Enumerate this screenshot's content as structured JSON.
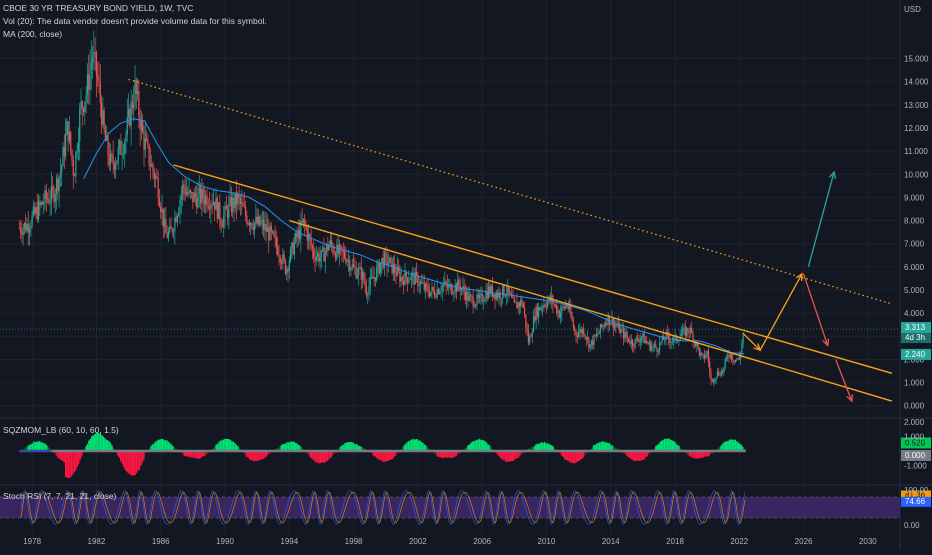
{
  "colors": {
    "background": "#131722",
    "grid": "#1e222d",
    "candle_up": "#26a69a",
    "candle_down": "#ef5350",
    "ma_line": "#2196f3",
    "channel": "#f7a21b",
    "dotted": "#f7a21b",
    "arrow_up": "#26a69a",
    "arrow_down": "#ef5350",
    "arrow_orange": "#f7a21b",
    "rsi_band": "#4a2c7a",
    "rsi_line": "#7e57c2"
  },
  "header": {
    "symbol_line": "CBOE 30 YR TREASURY BOND YIELD, 1W, TVC",
    "volume_line": "Vol (20): The data vendor doesn't provide volume data for this symbol.",
    "ma_line": "MA (200, close)"
  },
  "price_axis": {
    "unit": "USD",
    "ticks": [
      "15.000",
      "14.000",
      "13.000",
      "12.000",
      "11.000",
      "10.000",
      "9.000",
      "8.000",
      "7.000",
      "6.000",
      "5.000",
      "4.000",
      "3.000",
      "2.000",
      "1.000",
      "0.000"
    ],
    "price_badge": "3.313",
    "countdown_badge": "4d 3h",
    "ma_badge": "2.240"
  },
  "time_axis": {
    "ticks": [
      "1978",
      "1982",
      "1986",
      "1990",
      "1994",
      "1998",
      "2002",
      "2006",
      "2010",
      "2014",
      "2018",
      "2022",
      "2026",
      "2030"
    ]
  },
  "sqzmom": {
    "label": "SQZMOM_LB (60, 10, 60, 1.5)",
    "ticks": [
      "2.000",
      "1.000",
      "-1.000"
    ],
    "badge_value": "0.520",
    "badge_zero": "0.000"
  },
  "stoch": {
    "label": "Stoch RSI (7, 7, 21, 21, close)",
    "ticks": [
      "100.00",
      "0.00"
    ],
    "badge_k": "81.36",
    "badge_d": "74.66"
  },
  "chart_data": {
    "type": "line",
    "title": "CBOE 30 YR TREASURY BOND YIELD, 1W, TVC",
    "xlabel": "",
    "ylabel": "",
    "unit": "USD",
    "xlim": [
      1976,
      2032
    ],
    "ylim": [
      -0.4,
      15.8
    ],
    "grid": true,
    "series": [
      {
        "name": "CBOE 30 YR TREASURY BOND YIELD",
        "x": [
          1977.2,
          1977.7,
          1978.3,
          1978.8,
          1979.3,
          1979.8,
          1980.2,
          1980.6,
          1981.0,
          1981.4,
          1981.75,
          1982.1,
          1982.5,
          1982.9,
          1983.3,
          1983.8,
          1984.4,
          1984.9,
          1985.4,
          1985.8,
          1986.3,
          1986.6,
          1987.0,
          1987.4,
          1987.8,
          1988.3,
          1988.8,
          1989.3,
          1989.8,
          1990.3,
          1990.8,
          1991.3,
          1991.8,
          1992.3,
          1992.8,
          1993.3,
          1993.8,
          1994.3,
          1994.9,
          1995.5,
          1996.0,
          1996.5,
          1997.0,
          1997.5,
          1998.0,
          1998.5,
          1998.8,
          1999.3,
          1999.8,
          2000.2,
          2000.6,
          2001.0,
          2001.5,
          2002.0,
          2002.5,
          2003.0,
          2003.5,
          2004.0,
          2004.6,
          2005.2,
          2005.8,
          2006.4,
          2007.0,
          2007.5,
          2008.0,
          2008.5,
          2008.9,
          2009.3,
          2009.8,
          2010.3,
          2010.8,
          2011.3,
          2011.8,
          2012.3,
          2012.7,
          2013.2,
          2013.8,
          2014.3,
          2014.9,
          2015.4,
          2015.9,
          2016.4,
          2016.9,
          2017.4,
          2017.9,
          2018.4,
          2018.9,
          2019.3,
          2019.7,
          2020.0,
          2020.25,
          2020.6,
          2021.0,
          2021.3,
          2021.7,
          2022.0,
          2022.3
        ],
        "y": [
          7.7,
          7.8,
          8.4,
          8.9,
          9.1,
          10.2,
          12.1,
          10.0,
          12.8,
          13.6,
          15.2,
          14.0,
          11.6,
          10.4,
          10.8,
          11.6,
          13.7,
          11.6,
          10.4,
          9.6,
          7.4,
          7.4,
          8.4,
          9.5,
          9.0,
          9.0,
          9.0,
          8.9,
          8.0,
          8.6,
          8.9,
          8.2,
          7.9,
          7.8,
          7.4,
          6.8,
          5.9,
          7.0,
          7.9,
          6.6,
          6.4,
          7.0,
          6.6,
          6.5,
          5.9,
          5.7,
          5.0,
          5.6,
          6.3,
          6.2,
          5.8,
          5.5,
          5.6,
          5.4,
          5.0,
          4.9,
          5.2,
          5.1,
          5.2,
          4.6,
          4.5,
          5.0,
          4.8,
          5.0,
          4.3,
          4.5,
          2.7,
          4.0,
          4.4,
          4.6,
          4.0,
          4.4,
          3.1,
          3.3,
          2.6,
          3.1,
          3.8,
          3.5,
          3.0,
          2.7,
          3.0,
          2.6,
          2.5,
          3.0,
          2.8,
          3.1,
          3.3,
          2.7,
          2.0,
          2.3,
          1.0,
          1.4,
          1.5,
          2.3,
          2.0,
          2.0,
          3.3
        ]
      },
      {
        "name": "MA (200, close)",
        "x": [
          1981.2,
          1982.0,
          1982.8,
          1983.5,
          1984.3,
          1985.0,
          1985.8,
          1986.5,
          1987.5,
          1988.5,
          1989.5,
          1990.5,
          1991.5,
          1992.5,
          1993.5,
          1994.5,
          1995.5,
          1996.5,
          1997.5,
          1998.5,
          1999.5,
          2000.5,
          2001.5,
          2002.5,
          2003.5,
          2004.5,
          2005.5,
          2006.5,
          2007.5,
          2008.5,
          2009.5,
          2010.5,
          2011.5,
          2012.5,
          2013.5,
          2014.5,
          2015.5,
          2016.5,
          2017.5,
          2018.5,
          2019.5,
          2020.5,
          2021.5,
          2022.3
        ],
        "y": [
          9.8,
          10.9,
          11.8,
          12.2,
          12.4,
          12.3,
          11.3,
          10.5,
          9.9,
          9.5,
          9.3,
          9.2,
          9.0,
          8.6,
          8.0,
          7.5,
          7.2,
          6.9,
          6.7,
          6.5,
          6.2,
          6.0,
          5.7,
          5.5,
          5.3,
          5.1,
          5.0,
          4.9,
          4.8,
          4.7,
          4.6,
          4.5,
          4.3,
          4.1,
          3.8,
          3.5,
          3.3,
          3.1,
          2.9,
          2.8,
          2.8,
          2.6,
          2.3,
          2.24
        ]
      }
    ],
    "drawings": [
      {
        "name": "upper-channel",
        "x": [
          1986.8,
          2031.5
        ],
        "y": [
          10.4,
          1.4
        ]
      },
      {
        "name": "lower-channel",
        "x": [
          1994.0,
          2031.5
        ],
        "y": [
          8.0,
          0.2
        ]
      },
      {
        "name": "dotted-trendline",
        "x": [
          1984.0,
          2031.5
        ],
        "y": [
          14.1,
          4.4
        ]
      }
    ],
    "sqzmom_ylim": [
      -2.0,
      2.0
    ],
    "stoch_ylim": [
      0,
      100
    ]
  }
}
